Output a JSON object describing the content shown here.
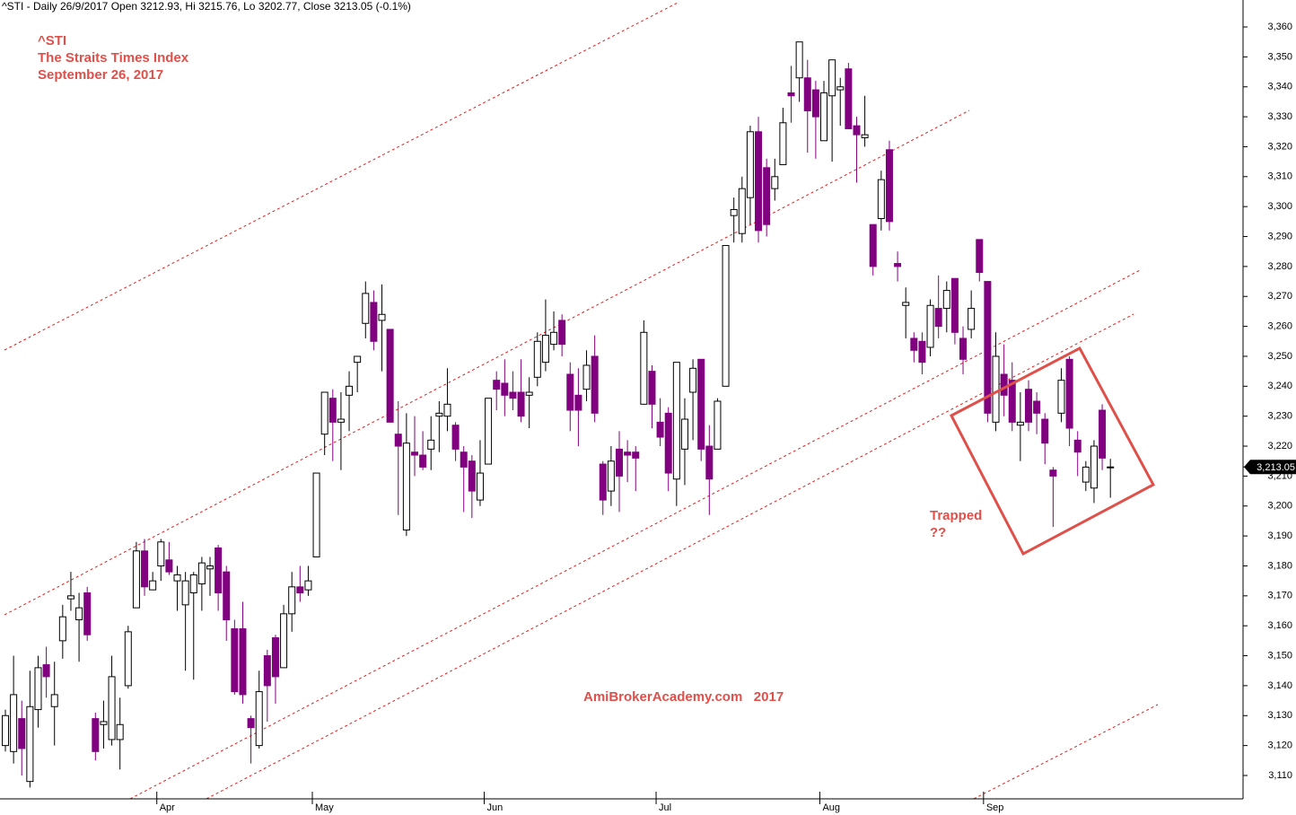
{
  "chart_data": {
    "type": "candlestick",
    "title": "^STI - Daily 26/9/2017 Open 3212.93, Hi 3215.76, Lo 3202.77, Close 3213.05 (-0.1%)",
    "annotations": [
      "^STI",
      "The Straits Times Index",
      "September 26, 2017",
      "Trapped",
      "??",
      "AmiBrokerAcademy.com   2017"
    ],
    "last_price": {
      "value": 3213.05,
      "label": "3,213.05"
    },
    "up_color": "#ffffff",
    "down_color": "#800080",
    "categories": [
      null,
      null,
      null,
      null,
      null,
      null,
      null,
      null,
      null,
      null,
      null,
      null,
      null,
      null,
      null,
      null,
      null,
      null,
      null,
      "Apr",
      null,
      null,
      null,
      null,
      null,
      null,
      null,
      null,
      null,
      null,
      null,
      null,
      null,
      null,
      null,
      null,
      null,
      null,
      "May",
      null,
      null,
      null,
      null,
      null,
      null,
      null,
      null,
      null,
      null,
      null,
      null,
      null,
      null,
      null,
      null,
      null,
      null,
      null,
      null,
      "Jun",
      null,
      null,
      null,
      null,
      null,
      null,
      null,
      null,
      null,
      null,
      null,
      null,
      null,
      null,
      null,
      null,
      null,
      null,
      null,
      null,
      "Jul",
      null,
      null,
      null,
      null,
      null,
      null,
      null,
      null,
      null,
      null,
      null,
      null,
      null,
      null,
      null,
      null,
      null,
      null,
      null,
      "Aug",
      null,
      null,
      null,
      null,
      null,
      null,
      null,
      null,
      null,
      null,
      null,
      null,
      null,
      null,
      null,
      null,
      null,
      null,
      null,
      "Sep",
      null,
      null,
      null,
      null,
      null,
      null,
      null,
      null,
      null,
      null,
      null,
      null,
      null,
      null,
      null
    ],
    "open": [
      3120,
      3118,
      3129,
      3108,
      3132,
      3147,
      3133,
      3155,
      3169,
      3162,
      3171,
      3129,
      3127,
      3122,
      3122,
      3140,
      3166,
      3185,
      3172,
      3180,
      3182,
      3175,
      3167,
      3171,
      3174,
      3179,
      3186,
      3178,
      3159,
      3159,
      3129,
      3120,
      3150,
      3156,
      3146,
      3164,
      3173,
      3172,
      3183,
      3224,
      3236,
      3228,
      3237,
      3248,
      3261,
      3268,
      3262,
      3259,
      3224,
      3192,
      3218,
      3217,
      3219,
      3230,
      3230,
      3227,
      3218,
      3215,
      3202,
      3214,
      3242,
      3241,
      3238,
      3238,
      3237,
      3243,
      3248,
      3254,
      3262,
      3244,
      3237,
      3239,
      3250,
      3214,
      3205,
      3219,
      3218,
      3218,
      3234,
      3245,
      3228,
      3231,
      3209,
      3219,
      3238,
      3249,
      3220,
      3219,
      3240,
      3297,
      3291,
      3303,
      3325,
      3313,
      3306,
      3314,
      3338,
      3343,
      3343,
      3339,
      3322,
      3337,
      3339,
      3346,
      3327,
      3323,
      3294,
      3296,
      3319,
      3281,
      3267,
      3256,
      3255,
      3253,
      3266,
      3266,
      3276,
      3256,
      3259,
      3289,
      3275,
      3228,
      3244,
      3242,
      3227,
      3239,
      3235,
      3229,
      3212,
      3231,
      3249,
      3222,
      3208,
      3206,
      3232,
      3212.93
    ],
    "high": [
      3132,
      3150,
      3135,
      3145,
      3150,
      3153,
      3148,
      3167,
      3178,
      3171,
      3173,
      3131,
      3135,
      3150,
      3136,
      3160,
      3188,
      3189,
      3178,
      3189,
      3188,
      3180,
      3178,
      3178,
      3183,
      3183,
      3187,
      3180,
      3162,
      3168,
      3130,
      3145,
      3152,
      3157,
      3167,
      3178,
      3180,
      3180,
      3211,
      3238,
      3239,
      3238,
      3245,
      3250,
      3275,
      3272,
      3274,
      3259,
      3235,
      3231,
      3230,
      3225,
      3230,
      3235,
      3246,
      3228,
      3220,
      3217,
      3222,
      3236,
      3245,
      3249,
      3245,
      3249,
      3243,
      3258,
      3269,
      3265,
      3264,
      3248,
      3246,
      3252,
      3257,
      3215,
      3220,
      3225,
      3222,
      3220,
      3262,
      3247,
      3236,
      3233,
      3248,
      3236,
      3249,
      3249,
      3227,
      3236,
      3287,
      3303,
      3310,
      3327,
      3330,
      3316,
      3316,
      3333,
      3347,
      3355,
      3349,
      3342,
      3342,
      3349,
      3343,
      3348,
      3330,
      3337,
      3294,
      3312,
      3322,
      3285,
      3273,
      3258,
      3258,
      3269,
      3277,
      3275,
      3276,
      3260,
      3272,
      3289,
      3275,
      3258,
      3254,
      3248,
      3238,
      3242,
      3238,
      3231,
      3213,
      3246,
      3250,
      3225,
      3215,
      3222,
      3234,
      3215.76
    ],
    "low": [
      3118,
      3114,
      3110,
      3106,
      3126,
      3136,
      3120,
      3149,
      3165,
      3148,
      3155,
      3115,
      3119,
      3120,
      3112,
      3139,
      3166,
      3170,
      3172,
      3175,
      3177,
      3165,
      3145,
      3142,
      3165,
      3170,
      3165,
      3155,
      3137,
      3134,
      3114,
      3119,
      3128,
      3134,
      3146,
      3158,
      3168,
      3170,
      3183,
      3217,
      3215,
      3212,
      3225,
      3238,
      3256,
      3252,
      3245,
      3228,
      3197,
      3190,
      3210,
      3212,
      3212,
      3218,
      3225,
      3215,
      3198,
      3196,
      3200,
      3214,
      3232,
      3230,
      3232,
      3228,
      3226,
      3240,
      3245,
      3252,
      3250,
      3225,
      3220,
      3235,
      3228,
      3197,
      3200,
      3198,
      3208,
      3205,
      3234,
      3226,
      3220,
      3205,
      3200,
      3207,
      3222,
      3215,
      3197,
      3219,
      3240,
      3288,
      3288,
      3294,
      3288,
      3290,
      3302,
      3314,
      3328,
      3335,
      3318,
      3316,
      3322,
      3315,
      3327,
      3326,
      3308,
      3320,
      3277,
      3292,
      3292,
      3275,
      3256,
      3248,
      3244,
      3250,
      3256,
      3258,
      3254,
      3244,
      3256,
      3275,
      3228,
      3225,
      3230,
      3225,
      3215,
      3225,
      3224,
      3214,
      3193,
      3228,
      3220,
      3210,
      3205,
      3201,
      3212,
      3202.77
    ],
    "close": [
      3130,
      3137,
      3119,
      3133,
      3146,
      3143,
      3137,
      3163,
      3170,
      3166,
      3157,
      3118,
      3128,
      3143,
      3127,
      3158,
      3185,
      3173,
      3175,
      3188,
      3178,
      3177,
      3175,
      3177,
      3181,
      3180,
      3171,
      3162,
      3138,
      3137,
      3126,
      3138,
      3140,
      3143,
      3164,
      3173,
      3171,
      3175,
      3211,
      3238,
      3228,
      3229,
      3240,
      3250,
      3271,
      3255,
      3264,
      3228,
      3220,
      3221,
      3217,
      3213,
      3222,
      3231,
      3234,
      3219,
      3213,
      3205,
      3211,
      3236,
      3239,
      3237,
      3236,
      3230,
      3238,
      3255,
      3257,
      3258,
      3254,
      3232,
      3232,
      3247,
      3231,
      3202,
      3215,
      3210,
      3217,
      3216,
      3258,
      3234,
      3223,
      3211,
      3248,
      3229,
      3246,
      3219,
      3209,
      3235,
      3287,
      3299,
      3306,
      3325,
      3292,
      3294,
      3310,
      3328,
      3337,
      3355,
      3332,
      3330,
      3338,
      3349,
      3340,
      3326,
      3324,
      3324,
      3280,
      3309,
      3295,
      3280,
      3268,
      3252,
      3248,
      3267,
      3260,
      3272,
      3258,
      3249,
      3266,
      3278,
      3231,
      3250,
      3237,
      3228,
      3228,
      3228,
      3231,
      3221,
      3210,
      3242,
      3226,
      3218,
      3213,
      3220,
      3216,
      3213.05
    ],
    "ylim": [
      3102.2,
      3369
    ],
    "yticks": [
      {
        "value": 3110,
        "label": "3,110"
      },
      {
        "value": 3120,
        "label": "3,120"
      },
      {
        "value": 3130,
        "label": "3,130"
      },
      {
        "value": 3140,
        "label": "3,140"
      },
      {
        "value": 3150,
        "label": "3,150"
      },
      {
        "value": 3160,
        "label": "3,160"
      },
      {
        "value": 3170,
        "label": "3,170"
      },
      {
        "value": 3180,
        "label": "3,180"
      },
      {
        "value": 3190,
        "label": "3,190"
      },
      {
        "value": 3200,
        "label": "3,200"
      },
      {
        "value": 3210,
        "label": "3,210"
      },
      {
        "value": 3220,
        "label": "3,220"
      },
      {
        "value": 3230,
        "label": "3,230"
      },
      {
        "value": 3240,
        "label": "3,240"
      },
      {
        "value": 3250,
        "label": "3,250"
      },
      {
        "value": 3260,
        "label": "3,260"
      },
      {
        "value": 3270,
        "label": "3,270"
      },
      {
        "value": 3280,
        "label": "3,280"
      },
      {
        "value": 3290,
        "label": "3,290"
      },
      {
        "value": 3300,
        "label": "3,300"
      },
      {
        "value": 3310,
        "label": "3,310"
      },
      {
        "value": 3320,
        "label": "3,320"
      },
      {
        "value": 3330,
        "label": "3,330"
      },
      {
        "value": 3340,
        "label": "3,340"
      },
      {
        "value": 3350,
        "label": "3,350"
      },
      {
        "value": 3360,
        "label": "3,360"
      }
    ],
    "grid": false
  }
}
